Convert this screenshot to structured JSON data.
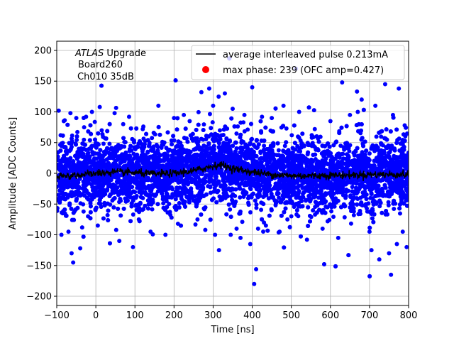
{
  "chart_data": {
    "type": "scatter",
    "xlabel": "Time [ns]",
    "ylabel": "Amplitude [ADC Counts]",
    "xlim": [
      -100,
      800
    ],
    "ylim": [
      -215,
      215
    ],
    "xticks": [
      -100,
      0,
      100,
      200,
      300,
      400,
      500,
      600,
      700,
      800
    ],
    "yticks": [
      -200,
      -150,
      -100,
      -50,
      0,
      50,
      100,
      150,
      200
    ],
    "grid": true,
    "annotation": {
      "line1_italic": "ATLAS",
      "line1_rest": " Upgrade",
      "line2": "Board260",
      "line3": "Ch010 35dB"
    },
    "legend": {
      "position": "top-right",
      "entries": [
        {
          "label": "average interleaved pulse 0.213mA",
          "marker": "line",
          "color": "#000000"
        },
        {
          "label": "max phase: 239 (OFC amp=0.427)",
          "marker": "dot",
          "color": "#ff0000"
        }
      ]
    },
    "series": [
      {
        "name": "samples",
        "kind": "scatter",
        "color": "#0000ff",
        "x_range": [
          -100,
          800
        ],
        "core_band": [
          -40,
          40
        ],
        "n_points": 6500,
        "outliers": [
          {
            "x": -95,
            "y": 102
          },
          {
            "x": -90,
            "y": 62
          },
          {
            "x": -88,
            "y": -100
          },
          {
            "x": -85,
            "y": -65
          },
          {
            "x": -82,
            "y": 85
          },
          {
            "x": -70,
            "y": -95
          },
          {
            "x": -65,
            "y": 98
          },
          {
            "x": -62,
            "y": -130
          },
          {
            "x": -58,
            "y": -145
          },
          {
            "x": -50,
            "y": 90
          },
          {
            "x": -40,
            "y": -122
          },
          {
            "x": -35,
            "y": -88
          },
          {
            "x": -30,
            "y": 75
          },
          {
            "x": -25,
            "y": 92
          },
          {
            "x": -20,
            "y": -70
          },
          {
            "x": -10,
            "y": 100
          },
          {
            "x": 5,
            "y": -85
          },
          {
            "x": 10,
            "y": 108
          },
          {
            "x": 15,
            "y": 70
          },
          {
            "x": 30,
            "y": -68
          },
          {
            "x": 48,
            "y": 98
          },
          {
            "x": 52,
            "y": -92
          },
          {
            "x": 60,
            "y": -110
          },
          {
            "x": 70,
            "y": 80
          },
          {
            "x": 85,
            "y": 92
          },
          {
            "x": 95,
            "y": -120
          },
          {
            "x": 110,
            "y": -75
          },
          {
            "x": 120,
            "y": 72
          },
          {
            "x": 140,
            "y": -95
          },
          {
            "x": 160,
            "y": 110
          },
          {
            "x": 178,
            "y": -100
          },
          {
            "x": 200,
            "y": 90
          },
          {
            "x": 210,
            "y": -82
          },
          {
            "x": 225,
            "y": 95
          },
          {
            "x": 240,
            "y": 85
          },
          {
            "x": 260,
            "y": -75
          },
          {
            "x": 270,
            "y": 132
          },
          {
            "x": 280,
            "y": -92
          },
          {
            "x": 290,
            "y": 138
          },
          {
            "x": 300,
            "y": 110
          },
          {
            "x": 305,
            "y": -100
          },
          {
            "x": 315,
            "y": -125
          },
          {
            "x": 330,
            "y": 130
          },
          {
            "x": 345,
            "y": -100
          },
          {
            "x": 350,
            "y": 105
          },
          {
            "x": 360,
            "y": -90
          },
          {
            "x": 370,
            "y": -105
          },
          {
            "x": 380,
            "y": 95
          },
          {
            "x": 395,
            "y": -115
          },
          {
            "x": 400,
            "y": 140
          },
          {
            "x": 405,
            "y": -180
          },
          {
            "x": 410,
            "y": -156
          },
          {
            "x": 415,
            "y": -90
          },
          {
            "x": 425,
            "y": 92
          },
          {
            "x": 435,
            "y": -85
          },
          {
            "x": 450,
            "y": 90
          },
          {
            "x": 470,
            "y": -95
          },
          {
            "x": 480,
            "y": 110
          },
          {
            "x": 490,
            "y": -75
          },
          {
            "x": 500,
            "y": -70
          },
          {
            "x": 520,
            "y": 100
          },
          {
            "x": 540,
            "y": -108
          },
          {
            "x": 560,
            "y": 72
          },
          {
            "x": 580,
            "y": -90
          },
          {
            "x": 600,
            "y": 85
          },
          {
            "x": 620,
            "y": -105
          },
          {
            "x": 630,
            "y": 148
          },
          {
            "x": 650,
            "y": 95
          },
          {
            "x": 660,
            "y": -68
          },
          {
            "x": 670,
            "y": 100
          },
          {
            "x": 680,
            "y": 120
          },
          {
            "x": 700,
            "y": -95
          },
          {
            "x": 705,
            "y": -125
          },
          {
            "x": 715,
            "y": 110
          },
          {
            "x": 725,
            "y": -140
          },
          {
            "x": 740,
            "y": 145
          },
          {
            "x": 750,
            "y": -130
          },
          {
            "x": 755,
            "y": -165
          },
          {
            "x": 760,
            "y": 95
          },
          {
            "x": 770,
            "y": -115
          },
          {
            "x": 775,
            "y": 138
          },
          {
            "x": 785,
            "y": -95
          },
          {
            "x": 790,
            "y": 78
          },
          {
            "x": 795,
            "y": -120
          }
        ]
      },
      {
        "name": "average interleaved pulse 0.213mA",
        "kind": "line",
        "color": "#000000",
        "x": [
          -100,
          -50,
          0,
          50,
          100,
          150,
          200,
          250,
          300,
          320,
          350,
          400,
          450,
          500,
          550,
          600,
          650,
          700,
          750,
          800
        ],
        "y": [
          -6,
          -3,
          0,
          2,
          1,
          -1,
          0,
          4,
          12,
          14,
          8,
          2,
          -2,
          -4,
          -4,
          -3,
          -3,
          -2,
          -2,
          -2
        ]
      },
      {
        "name": "max phase: 239 (OFC amp=0.427)",
        "kind": "scatter",
        "color": "#ff0000",
        "x": [],
        "y": []
      }
    ]
  }
}
